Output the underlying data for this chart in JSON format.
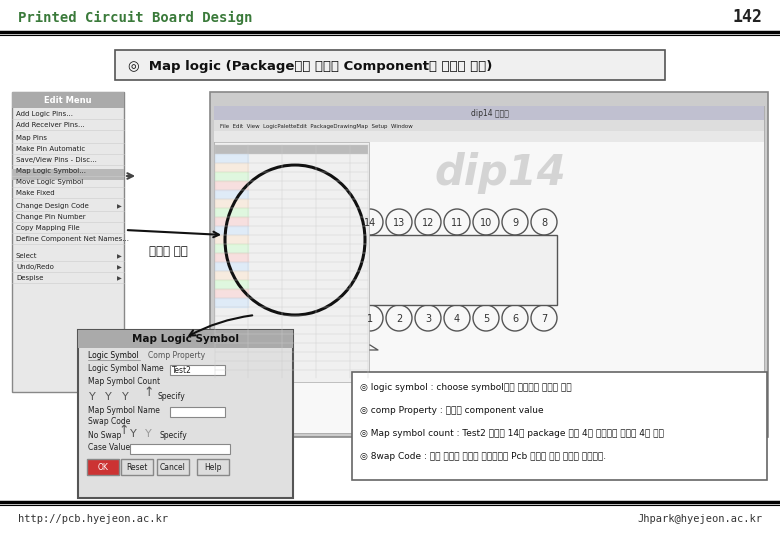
{
  "title": "Printed Circuit Board Design",
  "page_num": "142",
  "section_title": "◎  Map logic (Package내에 다수의 Component가 존재할 경우)",
  "footer_left": "http://pcb.hyejeon.ac.kr",
  "footer_right": "Jhpark@hyejeon.ac.kr",
  "bg_color": "#ffffff",
  "title_color": "#3a7a3a",
  "annotation_label": "오른쪽 클릭",
  "bullet_lines": [
    "◎ logic symbol : choose symbol에서 불러오는 심볼의 이름",
    "◎ comp Property : 심볼의 component value",
    "◎ Map symbol count : Test2 소자는 14핀 package 내에 4개 존재하기 때문에 4를 선택",
    "◎ 8wap Code : 동일 번호가 할당된 소자간에는 Pcb 설계시 소자 교환이 가능하다."
  ]
}
